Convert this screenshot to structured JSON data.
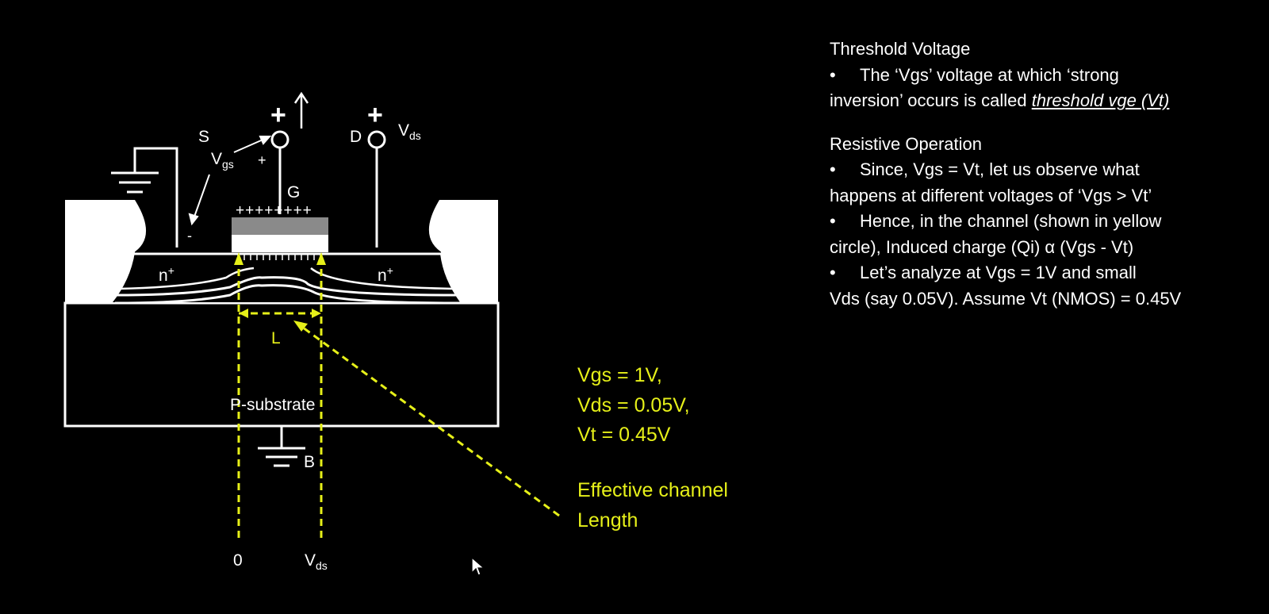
{
  "diagram": {
    "labels": {
      "source": "S",
      "vgs_base": "V",
      "vgs_sub": "gs",
      "plus_small": "+",
      "minus_small": "-",
      "plus_gate": "+",
      "arrow_up": "↑",
      "gate": "G",
      "gate_charges": "++++++++",
      "drain": "D",
      "plus_drain": "+",
      "vds_base": "V",
      "vds_sub": "ds",
      "n_left_base": "n",
      "n_left_sup": "+",
      "n_right_base": "n",
      "n_right_sup": "+",
      "substrate": "P-substrate",
      "body": "B",
      "length": "L",
      "axis_zero": "0",
      "axis_vds_base": "V",
      "axis_vds_sub": "ds"
    },
    "params": [
      "Vgs = 1V,",
      "Vds = 0.05V,",
      "Vt = 0.45V"
    ],
    "effective_channel": "Effective channel Length",
    "colors": {
      "annotation": "#e6f019",
      "line": "#ffffff",
      "gate_oxide": "#8a8a8a",
      "background": "#000000"
    }
  },
  "notes": {
    "threshold_title": "Threshold Voltage",
    "threshold_bullet_a": "The ‘Vgs’ voltage at which ‘strong",
    "threshold_bullet_b": "inversion’ occurs is called ",
    "threshold_bullet_em": "threshold vge (Vt)",
    "resistive_title": "Resistive Operation",
    "bullet1_a": "Since, Vgs = Vt, let us observe what",
    "bullet1_b": "happens at different voltages of ‘Vgs > Vt’",
    "bullet2_a": "Hence, in the channel (shown in yellow",
    "bullet2_b": "circle), Induced charge (Qi) α  (Vgs - Vt)",
    "bullet3_a": "Let’s analyze at Vgs = 1V and small",
    "bullet3_b": "Vds (say 0.05V). Assume Vt (NMOS) = 0.45V",
    "bullet_char": "•"
  },
  "cursor": "pointer-arrow-icon"
}
